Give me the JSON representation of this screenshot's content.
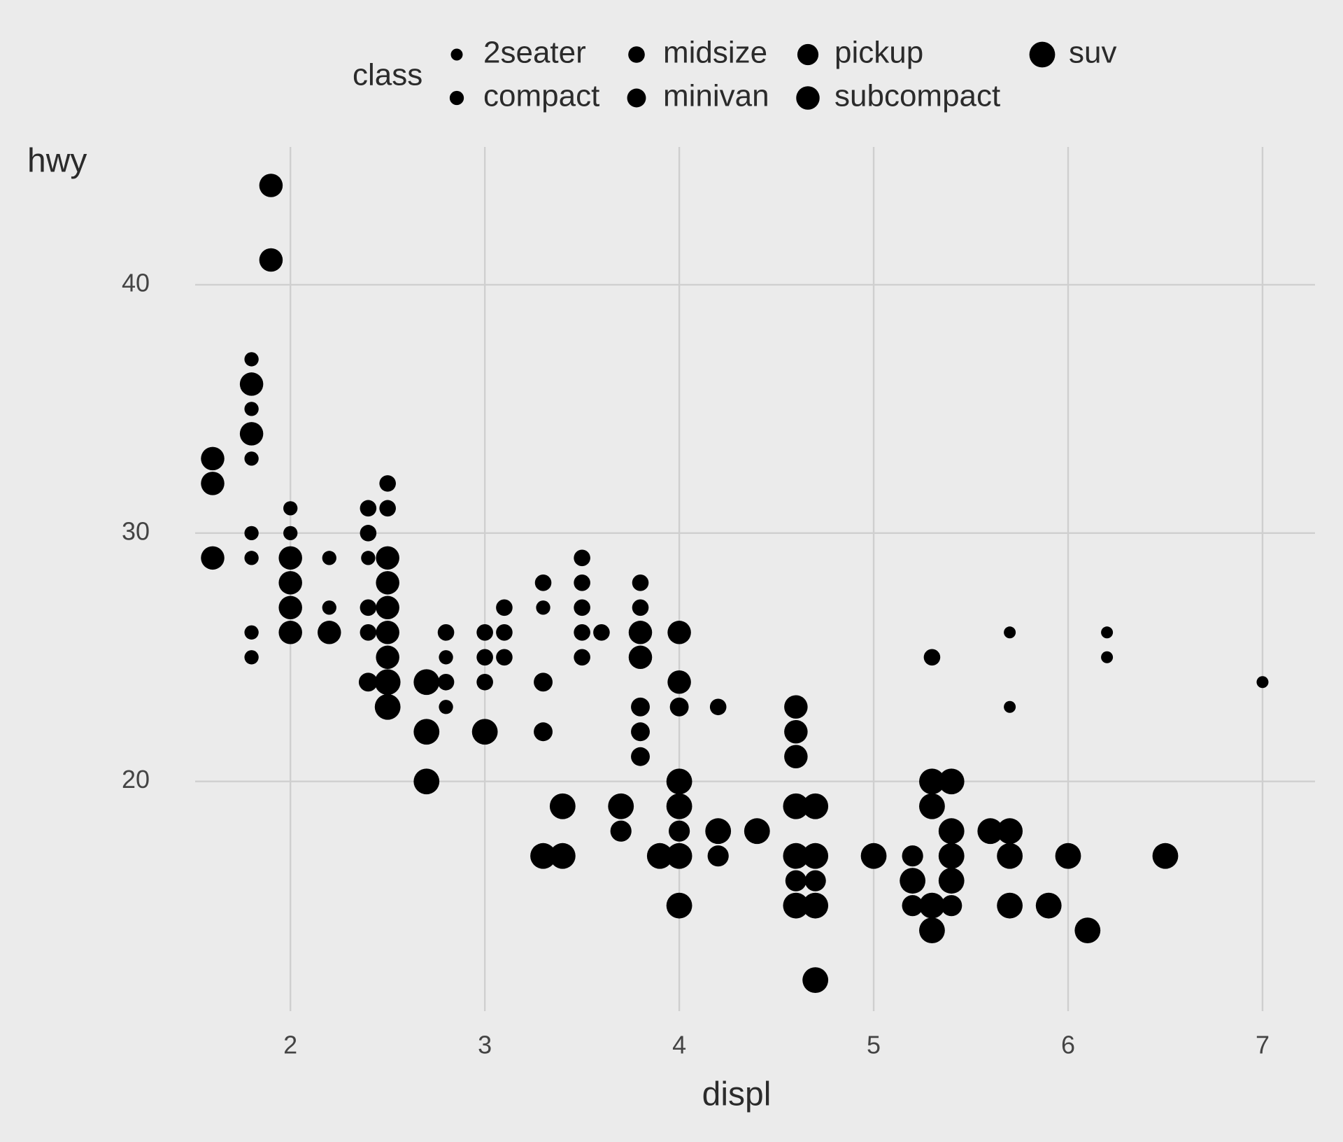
{
  "chart_data": {
    "type": "scatter",
    "x_label": "displ",
    "y_label": "hwy",
    "legend_title": "class",
    "color": "#000000",
    "grid": true,
    "legend": "top",
    "xlim": [
      1.51,
      7.27
    ],
    "ylim": [
      10.75,
      45.55
    ],
    "xticks": [
      2,
      3,
      4,
      5,
      6,
      7
    ],
    "yticks": [
      20,
      30,
      40
    ],
    "series": [
      {
        "name": "2seater",
        "x": [
          5.7,
          5.7,
          6.2,
          6.2,
          7.0
        ],
        "y": [
          26,
          23,
          26,
          25,
          24
        ]
      },
      {
        "name": "compact",
        "x": [
          1.8,
          1.8,
          1.8,
          1.8,
          1.8,
          1.8,
          1.8,
          2.0,
          2.0,
          2.2,
          2.2,
          2.4,
          2.8,
          2.8,
          3.3
        ],
        "y": [
          37,
          35,
          33,
          30,
          29,
          26,
          25,
          31,
          30,
          29,
          27,
          29,
          25,
          23,
          27
        ]
      },
      {
        "name": "midsize",
        "x": [
          2.4,
          2.4,
          2.4,
          2.4,
          2.5,
          2.5,
          2.8,
          2.8,
          3.0,
          3.0,
          3.0,
          3.1,
          3.1,
          3.1,
          3.3,
          3.5,
          3.5,
          3.5,
          3.5,
          3.5,
          3.6,
          3.8,
          3.8,
          4.2,
          5.3
        ],
        "y": [
          31,
          30,
          27,
          26,
          32,
          31,
          26,
          24,
          26,
          25,
          24,
          27,
          26,
          25,
          28,
          29,
          28,
          27,
          26,
          25,
          26,
          28,
          27,
          23,
          25
        ]
      },
      {
        "name": "minivan",
        "x": [
          2.4,
          3.3,
          3.3,
          3.8,
          3.8,
          3.8,
          4.0
        ],
        "y": [
          24,
          24,
          22,
          23,
          22,
          21,
          23
        ]
      },
      {
        "name": "pickup",
        "x": [
          3.7,
          4.0,
          4.2,
          4.6,
          4.7,
          5.2,
          5.2,
          5.4
        ],
        "y": [
          18,
          18,
          17,
          16,
          16,
          17,
          15,
          15
        ]
      },
      {
        "name": "subcompact",
        "x": [
          1.6,
          1.6,
          1.6,
          1.8,
          1.8,
          1.9,
          1.9,
          2.0,
          2.0,
          2.0,
          2.0,
          2.2,
          2.5,
          2.5,
          2.5,
          2.5,
          2.5,
          3.8,
          3.8,
          4.0,
          4.0,
          4.6,
          4.6,
          4.6
        ],
        "y": [
          33,
          32,
          29,
          36,
          34,
          44,
          41,
          29,
          28,
          27,
          26,
          26,
          29,
          28,
          27,
          26,
          25,
          26,
          25,
          26,
          24,
          23,
          22,
          21
        ]
      },
      {
        "name": "suv",
        "x": [
          2.5,
          2.5,
          2.7,
          2.7,
          2.7,
          3.0,
          3.3,
          3.4,
          3.4,
          3.7,
          3.9,
          4.0,
          4.0,
          4.0,
          4.0,
          4.2,
          4.4,
          4.6,
          4.6,
          4.6,
          4.7,
          4.7,
          4.7,
          4.7,
          5.0,
          5.2,
          5.3,
          5.3,
          5.3,
          5.3,
          5.4,
          5.4,
          5.4,
          5.4,
          5.6,
          5.7,
          5.7,
          5.7,
          5.9,
          6.0,
          6.1,
          6.5
        ],
        "y": [
          24,
          23,
          24,
          22,
          20,
          22,
          17,
          19,
          17,
          19,
          17,
          20,
          19,
          17,
          15,
          18,
          18,
          19,
          17,
          15,
          19,
          17,
          15,
          12,
          17,
          16,
          20,
          19,
          15,
          14,
          20,
          18,
          17,
          16,
          18,
          18,
          17,
          15,
          15,
          17,
          14,
          17
        ]
      }
    ]
  }
}
